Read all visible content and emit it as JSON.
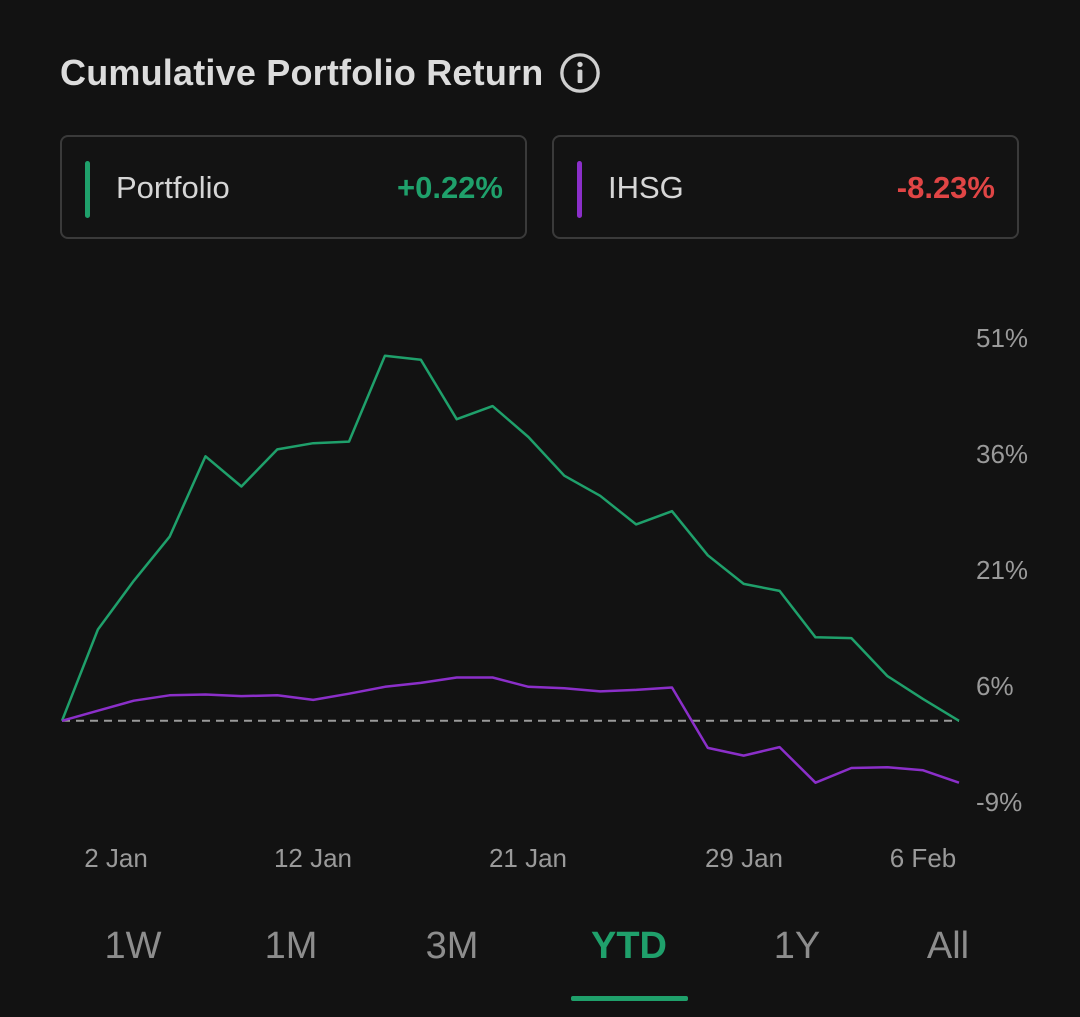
{
  "header": {
    "title": "Cumulative Portfolio Return",
    "info_icon": "info-circle-icon"
  },
  "legend": [
    {
      "name": "Portfolio",
      "value": "+0.22%",
      "color": "#1fa06b"
    },
    {
      "name": "IHSG",
      "value": "-8.23%",
      "color": "#8b2fc9",
      "value_color": "#e04545"
    }
  ],
  "tabs": [
    {
      "label": "1W",
      "active": false
    },
    {
      "label": "1M",
      "active": false
    },
    {
      "label": "3M",
      "active": false
    },
    {
      "label": "YTD",
      "active": true
    },
    {
      "label": "1Y",
      "active": false
    },
    {
      "label": "All",
      "active": false
    }
  ],
  "colors": {
    "background": "#121212",
    "portfolio": "#1fa06b",
    "ihsg": "#8b2fc9",
    "negative": "#e04545",
    "baseline": "#9a9a9a"
  },
  "chart_data": {
    "type": "line",
    "ylim": [
      -9,
      51
    ],
    "yticks": [
      51,
      36,
      21,
      6,
      -9
    ],
    "ytick_labels": [
      "51%",
      "36%",
      "21%",
      "6%",
      "-9%"
    ],
    "xtick_labels": [
      "2 Jan",
      "12 Jan",
      "21 Jan",
      "29 Jan",
      "6 Feb"
    ],
    "baseline": 1.5,
    "grid": false,
    "series": [
      {
        "name": "Portfolio",
        "color": "#1fa06b",
        "values": [
          1.5,
          13.3,
          19.6,
          25.3,
          35.7,
          31.8,
          36.6,
          37.4,
          37.6,
          48.7,
          48.2,
          40.5,
          42.2,
          38.2,
          33.2,
          30.6,
          26.9,
          28.6,
          22.9,
          19.2,
          18.3,
          12.3,
          12.2,
          7.3,
          4.3,
          1.5
        ]
      },
      {
        "name": "IHSG",
        "color": "#8b2fc9",
        "values": [
          1.5,
          2.8,
          4.1,
          4.8,
          4.9,
          4.7,
          4.8,
          4.2,
          5.0,
          5.9,
          6.4,
          7.1,
          7.1,
          5.9,
          5.7,
          5.3,
          5.5,
          5.8,
          -2.0,
          -3.0,
          -1.9,
          -6.5,
          -4.6,
          -4.5,
          -4.9,
          -6.5
        ]
      }
    ]
  }
}
